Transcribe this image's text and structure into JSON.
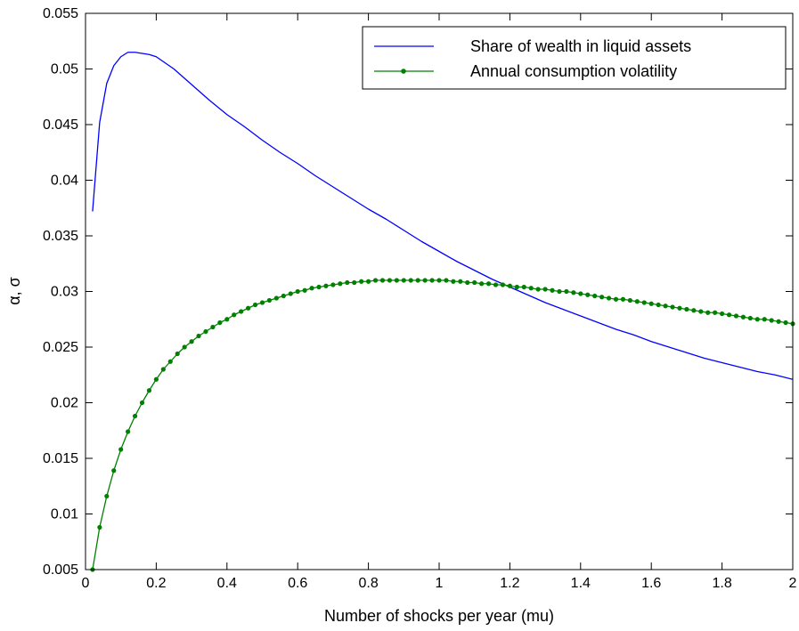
{
  "chart_data": {
    "type": "line",
    "title": "",
    "xlabel": "Number of shocks per year (mu)",
    "ylabel": "α, σ",
    "xlim": [
      0,
      2
    ],
    "ylim": [
      0.005,
      0.055
    ],
    "x_ticks": [
      "0",
      "0.2",
      "0.4",
      "0.6",
      "0.8",
      "1",
      "1.2",
      "1.4",
      "1.6",
      "1.8",
      "2"
    ],
    "y_ticks": [
      "0.005",
      "0.01",
      "0.015",
      "0.02",
      "0.025",
      "0.03",
      "0.035",
      "0.04",
      "0.045",
      "0.05",
      "0.055"
    ],
    "grid": false,
    "legend_position": "top-right",
    "series": [
      {
        "name": "Share of wealth in liquid assets",
        "color": "#0000ff",
        "marker": "none",
        "points": [
          [
            0.02,
            0.0372
          ],
          [
            0.04,
            0.0452
          ],
          [
            0.06,
            0.0487
          ],
          [
            0.08,
            0.0503
          ],
          [
            0.1,
            0.0511
          ],
          [
            0.12,
            0.0515
          ],
          [
            0.14,
            0.0515
          ],
          [
            0.16,
            0.0514
          ],
          [
            0.18,
            0.0513
          ],
          [
            0.2,
            0.0511
          ],
          [
            0.25,
            0.05
          ],
          [
            0.3,
            0.0486
          ],
          [
            0.35,
            0.0472
          ],
          [
            0.4,
            0.0459
          ],
          [
            0.45,
            0.0448
          ],
          [
            0.5,
            0.0436
          ],
          [
            0.55,
            0.0425
          ],
          [
            0.6,
            0.0415
          ],
          [
            0.65,
            0.0404
          ],
          [
            0.7,
            0.0394
          ],
          [
            0.75,
            0.0384
          ],
          [
            0.8,
            0.0374
          ],
          [
            0.85,
            0.0365
          ],
          [
            0.9,
            0.0355
          ],
          [
            0.95,
            0.0345
          ],
          [
            1.0,
            0.0336
          ],
          [
            1.05,
            0.0327
          ],
          [
            1.1,
            0.0319
          ],
          [
            1.15,
            0.0311
          ],
          [
            1.2,
            0.0304
          ],
          [
            1.25,
            0.0297
          ],
          [
            1.3,
            0.029
          ],
          [
            1.35,
            0.0284
          ],
          [
            1.4,
            0.0278
          ],
          [
            1.45,
            0.0272
          ],
          [
            1.5,
            0.0266
          ],
          [
            1.55,
            0.0261
          ],
          [
            1.6,
            0.0255
          ],
          [
            1.65,
            0.025
          ],
          [
            1.7,
            0.0245
          ],
          [
            1.75,
            0.024
          ],
          [
            1.8,
            0.0236
          ],
          [
            1.85,
            0.0232
          ],
          [
            1.9,
            0.0228
          ],
          [
            1.95,
            0.0225
          ],
          [
            2.0,
            0.0221
          ]
        ]
      },
      {
        "name": "Annual consumption volatility",
        "color": "#008000",
        "marker": "dot",
        "points": [
          [
            0.02,
            0.005
          ],
          [
            0.04,
            0.0088
          ],
          [
            0.06,
            0.0116
          ],
          [
            0.08,
            0.0139
          ],
          [
            0.1,
            0.0158
          ],
          [
            0.12,
            0.0174
          ],
          [
            0.14,
            0.0188
          ],
          [
            0.16,
            0.02
          ],
          [
            0.18,
            0.0211
          ],
          [
            0.2,
            0.0221
          ],
          [
            0.22,
            0.023
          ],
          [
            0.24,
            0.0237
          ],
          [
            0.26,
            0.0244
          ],
          [
            0.28,
            0.025
          ],
          [
            0.3,
            0.0255
          ],
          [
            0.32,
            0.026
          ],
          [
            0.34,
            0.0264
          ],
          [
            0.36,
            0.0268
          ],
          [
            0.38,
            0.0272
          ],
          [
            0.4,
            0.0275
          ],
          [
            0.42,
            0.0279
          ],
          [
            0.44,
            0.0282
          ],
          [
            0.46,
            0.0285
          ],
          [
            0.48,
            0.0288
          ],
          [
            0.5,
            0.029
          ],
          [
            0.52,
            0.0292
          ],
          [
            0.54,
            0.0294
          ],
          [
            0.56,
            0.0296
          ],
          [
            0.58,
            0.0298
          ],
          [
            0.6,
            0.03
          ],
          [
            0.62,
            0.0301
          ],
          [
            0.64,
            0.0303
          ],
          [
            0.66,
            0.0304
          ],
          [
            0.68,
            0.0305
          ],
          [
            0.7,
            0.0306
          ],
          [
            0.72,
            0.0307
          ],
          [
            0.74,
            0.0308
          ],
          [
            0.76,
            0.0308
          ],
          [
            0.78,
            0.0309
          ],
          [
            0.8,
            0.0309
          ],
          [
            0.82,
            0.031
          ],
          [
            0.84,
            0.031
          ],
          [
            0.86,
            0.031
          ],
          [
            0.88,
            0.031
          ],
          [
            0.9,
            0.031
          ],
          [
            0.92,
            0.031
          ],
          [
            0.94,
            0.031
          ],
          [
            0.96,
            0.031
          ],
          [
            0.98,
            0.031
          ],
          [
            1.0,
            0.031
          ],
          [
            1.02,
            0.031
          ],
          [
            1.04,
            0.0309
          ],
          [
            1.06,
            0.0309
          ],
          [
            1.08,
            0.0308
          ],
          [
            1.1,
            0.0308
          ],
          [
            1.12,
            0.0307
          ],
          [
            1.14,
            0.0307
          ],
          [
            1.16,
            0.0306
          ],
          [
            1.18,
            0.0306
          ],
          [
            1.2,
            0.0305
          ],
          [
            1.22,
            0.0304
          ],
          [
            1.24,
            0.0304
          ],
          [
            1.26,
            0.0303
          ],
          [
            1.28,
            0.0302
          ],
          [
            1.3,
            0.0302
          ],
          [
            1.32,
            0.0301
          ],
          [
            1.34,
            0.03
          ],
          [
            1.36,
            0.03
          ],
          [
            1.38,
            0.0299
          ],
          [
            1.4,
            0.0298
          ],
          [
            1.42,
            0.0297
          ],
          [
            1.44,
            0.0296
          ],
          [
            1.46,
            0.0295
          ],
          [
            1.48,
            0.0294
          ],
          [
            1.5,
            0.0293
          ],
          [
            1.52,
            0.0293
          ],
          [
            1.54,
            0.0292
          ],
          [
            1.56,
            0.0291
          ],
          [
            1.58,
            0.029
          ],
          [
            1.6,
            0.0289
          ],
          [
            1.62,
            0.0288
          ],
          [
            1.64,
            0.0287
          ],
          [
            1.66,
            0.0286
          ],
          [
            1.68,
            0.0285
          ],
          [
            1.7,
            0.0284
          ],
          [
            1.72,
            0.0283
          ],
          [
            1.74,
            0.0282
          ],
          [
            1.76,
            0.0281
          ],
          [
            1.78,
            0.0281
          ],
          [
            1.8,
            0.028
          ],
          [
            1.82,
            0.0279
          ],
          [
            1.84,
            0.0278
          ],
          [
            1.86,
            0.0277
          ],
          [
            1.88,
            0.0276
          ],
          [
            1.9,
            0.0275
          ],
          [
            1.92,
            0.0275
          ],
          [
            1.94,
            0.0274
          ],
          [
            1.96,
            0.0273
          ],
          [
            1.98,
            0.0272
          ],
          [
            2.0,
            0.0271
          ]
        ]
      }
    ]
  }
}
